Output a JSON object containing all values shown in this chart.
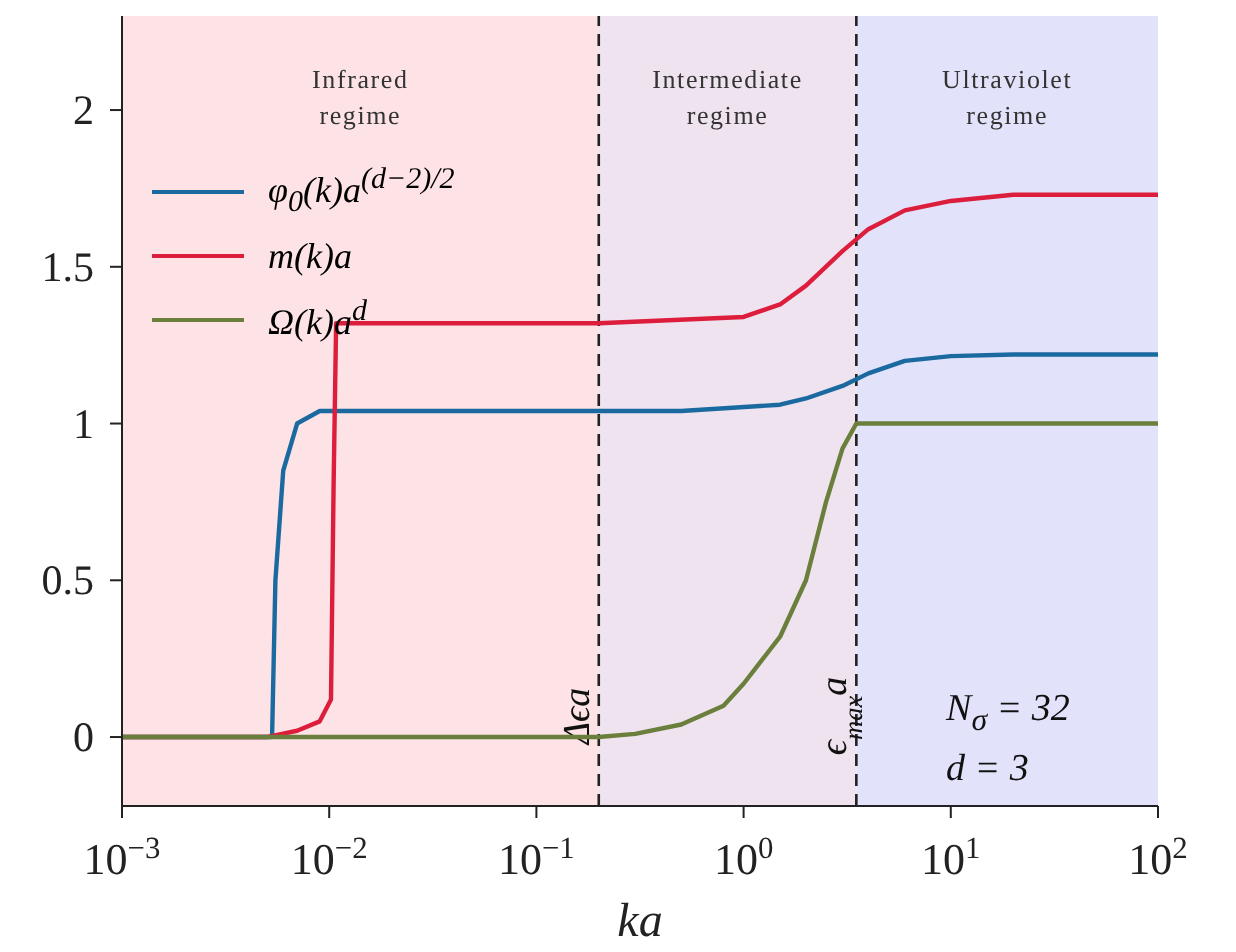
{
  "chart_data": {
    "type": "line",
    "xlabel": "ka",
    "log": "x",
    "xlim": [
      0.001,
      100
    ],
    "xticks": [
      {
        "value": 0.001,
        "label": "10$^{−3}$"
      },
      {
        "value": 0.01,
        "label": "10$^{−2}$"
      },
      {
        "value": 0.1,
        "label": "10$^{−1}$"
      },
      {
        "value": 1,
        "label": "10$^{0}$"
      },
      {
        "value": 10,
        "label": "10$^{1}$"
      },
      {
        "value": 100,
        "label": "10$^{2}$"
      }
    ],
    "ylim": [
      -0.22,
      2.3
    ],
    "yticks": [
      0,
      0.5,
      1,
      1.5,
      2
    ],
    "legend": "top left",
    "marker": "none",
    "line_style": "solid",
    "series": [
      {
        "name": "φ$_{0}$(k)a$^{(d−2)/2}$",
        "color": "#1a6aa0",
        "x": [
          0.001,
          0.0053,
          0.0055,
          0.006,
          0.007,
          0.009,
          0.2,
          0.5,
          1.5,
          2,
          3,
          4,
          6,
          10,
          20,
          100
        ],
        "values": [
          0,
          0,
          0.5,
          0.85,
          1.0,
          1.04,
          1.04,
          1.04,
          1.06,
          1.08,
          1.12,
          1.16,
          1.2,
          1.215,
          1.22,
          1.22
        ]
      },
      {
        "name": "m(k)a",
        "color": "#dc1e3c",
        "x": [
          0.001,
          0.005,
          0.007,
          0.009,
          0.0102,
          0.0105,
          0.0108,
          0.2,
          1,
          1.5,
          2,
          3,
          4,
          6,
          10,
          20,
          100
        ],
        "values": [
          0,
          0,
          0.02,
          0.05,
          0.12,
          0.8,
          1.32,
          1.32,
          1.34,
          1.38,
          1.44,
          1.55,
          1.62,
          1.68,
          1.71,
          1.73,
          1.73
        ]
      },
      {
        "name": "Ω(k)a$^{d}$",
        "color": "#6b7f3c",
        "x": [
          0.001,
          0.2,
          0.3,
          0.5,
          0.8,
          1,
          1.5,
          2,
          2.5,
          3,
          3.5,
          100
        ],
        "values": [
          0,
          0,
          0.01,
          0.04,
          0.1,
          0.17,
          0.32,
          0.5,
          0.75,
          0.92,
          1.0,
          1.0
        ]
      }
    ],
    "bands": [
      {
        "axis": "x",
        "from": 0.001,
        "to": 0.2,
        "label": "Infrared regime",
        "color": "#fde3e6"
      },
      {
        "axis": "x",
        "from": 0.2,
        "to": 3.5,
        "label": "Intermediate regime",
        "color": "#efe3f0"
      },
      {
        "axis": "x",
        "from": 3.5,
        "to": 100,
        "label": "Ultraviolet regime",
        "color": "#e2e2fb"
      }
    ],
    "ref_lines": [
      {
        "axis": "x",
        "value": 0.2,
        "label": "Δϵa",
        "line_style": "dashed"
      },
      {
        "axis": "x",
        "value": 3.5,
        "label": "ϵ$_{max}$a",
        "line_style": "dashed"
      }
    ],
    "annotations": [
      "N$_{σ}$ = 32",
      "d = 3"
    ]
  }
}
